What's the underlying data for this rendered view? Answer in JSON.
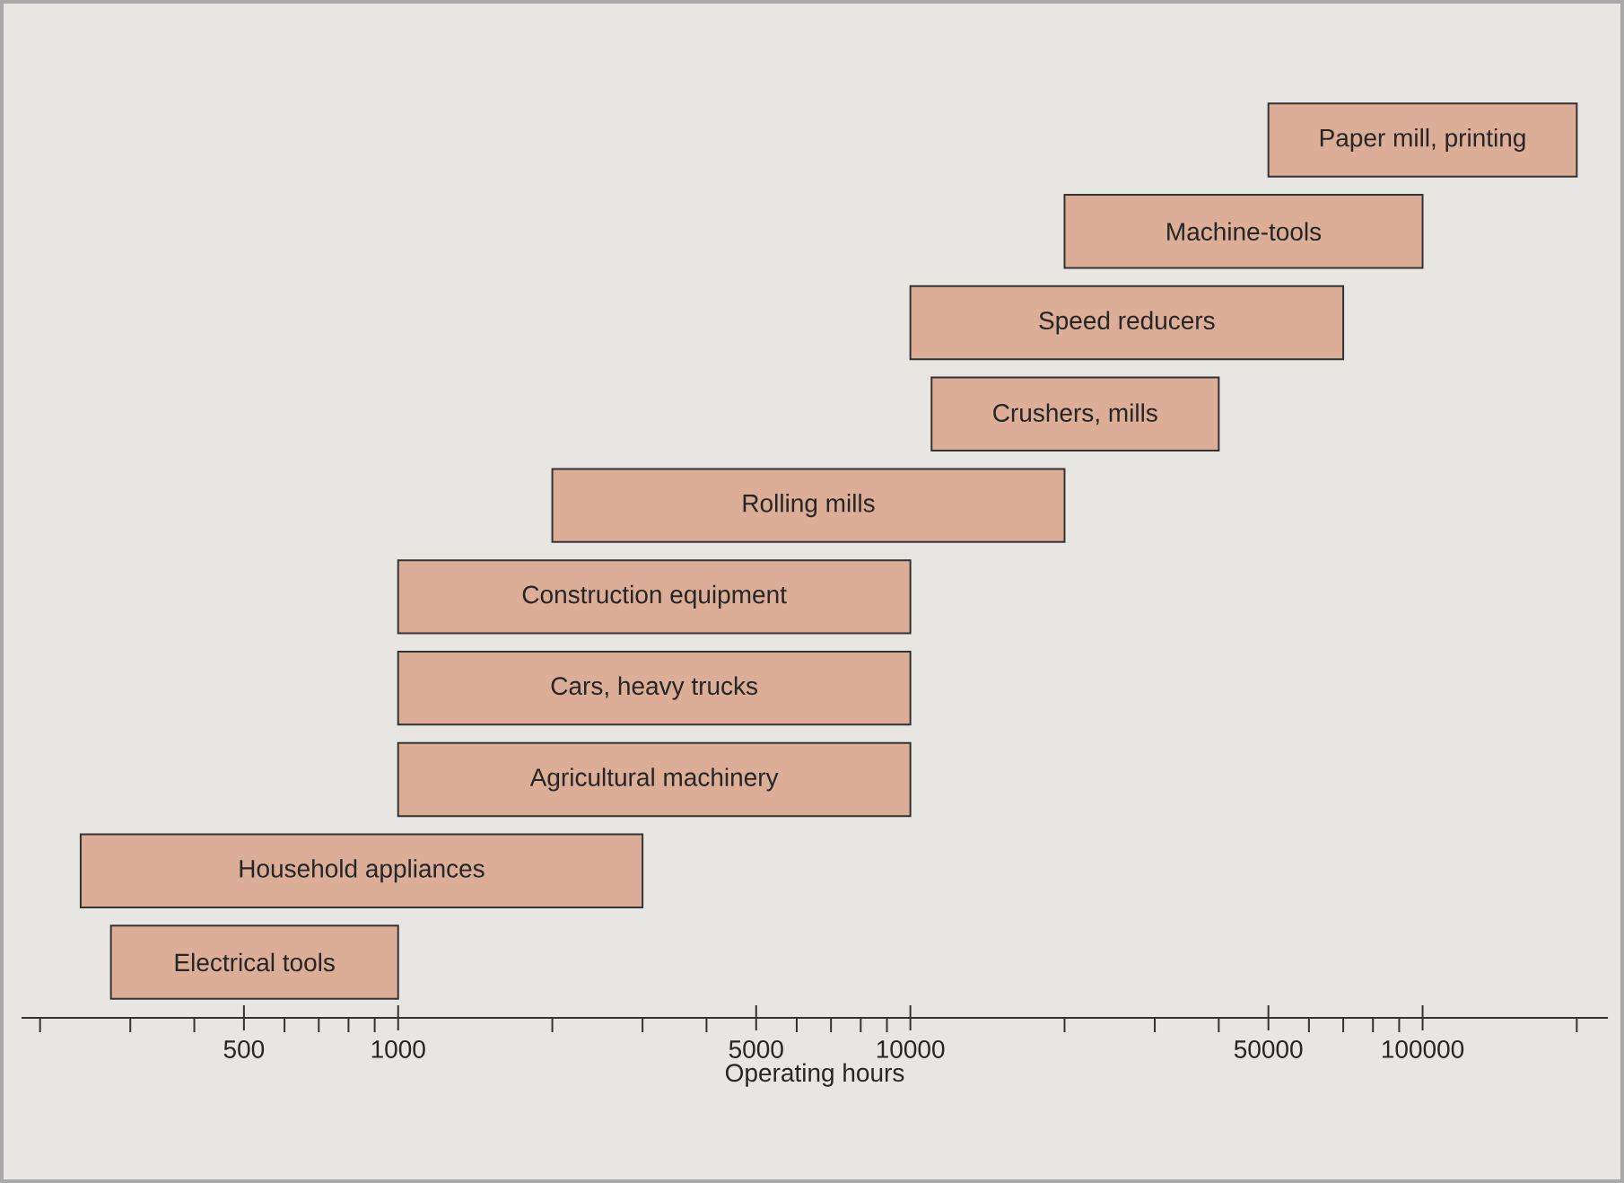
{
  "chart_data": {
    "type": "bar",
    "orientation": "horizontal",
    "log": "x",
    "tick_labels": "x",
    "xlabel": "Operating hours",
    "categories": [
      "Paper mill, printing",
      "Machine-tools",
      "Speed reducers",
      "Crushers, mills",
      "Rolling mills",
      "Construction equipment",
      "Cars, heavy trucks",
      "Agricultural machinery",
      "Household appliances",
      "Electrical tools"
    ],
    "base": [
      50000,
      20000,
      10000,
      11000,
      2000,
      1000,
      1000,
      1000,
      240,
      275
    ],
    "values": [
      150000,
      80000,
      60000,
      29000,
      18000,
      9000,
      9000,
      9000,
      2760,
      725
    ],
    "color": "#dcae98",
    "xlim": [
      184,
      230000
    ],
    "xticks": [
      {
        "value": 200,
        "label": null
      },
      {
        "value": 300,
        "label": null
      },
      {
        "value": 400,
        "label": null
      },
      500,
      {
        "value": 600,
        "label": null
      },
      {
        "value": 700,
        "label": null
      },
      {
        "value": 800,
        "label": null
      },
      {
        "value": 900,
        "label": null
      },
      1000,
      {
        "value": 2000,
        "label": null
      },
      {
        "value": 3000,
        "label": null
      },
      {
        "value": 4000,
        "label": null
      },
      5000,
      {
        "value": 6000,
        "label": null
      },
      {
        "value": 7000,
        "label": null
      },
      {
        "value": 8000,
        "label": null
      },
      {
        "value": 9000,
        "label": null
      },
      10000,
      {
        "value": 20000,
        "label": null
      },
      {
        "value": 30000,
        "label": null
      },
      {
        "value": 40000,
        "label": null
      },
      50000,
      {
        "value": 60000,
        "label": null
      },
      {
        "value": 70000,
        "label": null
      },
      {
        "value": 80000,
        "label": null
      },
      {
        "value": 90000,
        "label": null
      },
      100000,
      {
        "value": 200000,
        "label": null
      }
    ]
  }
}
